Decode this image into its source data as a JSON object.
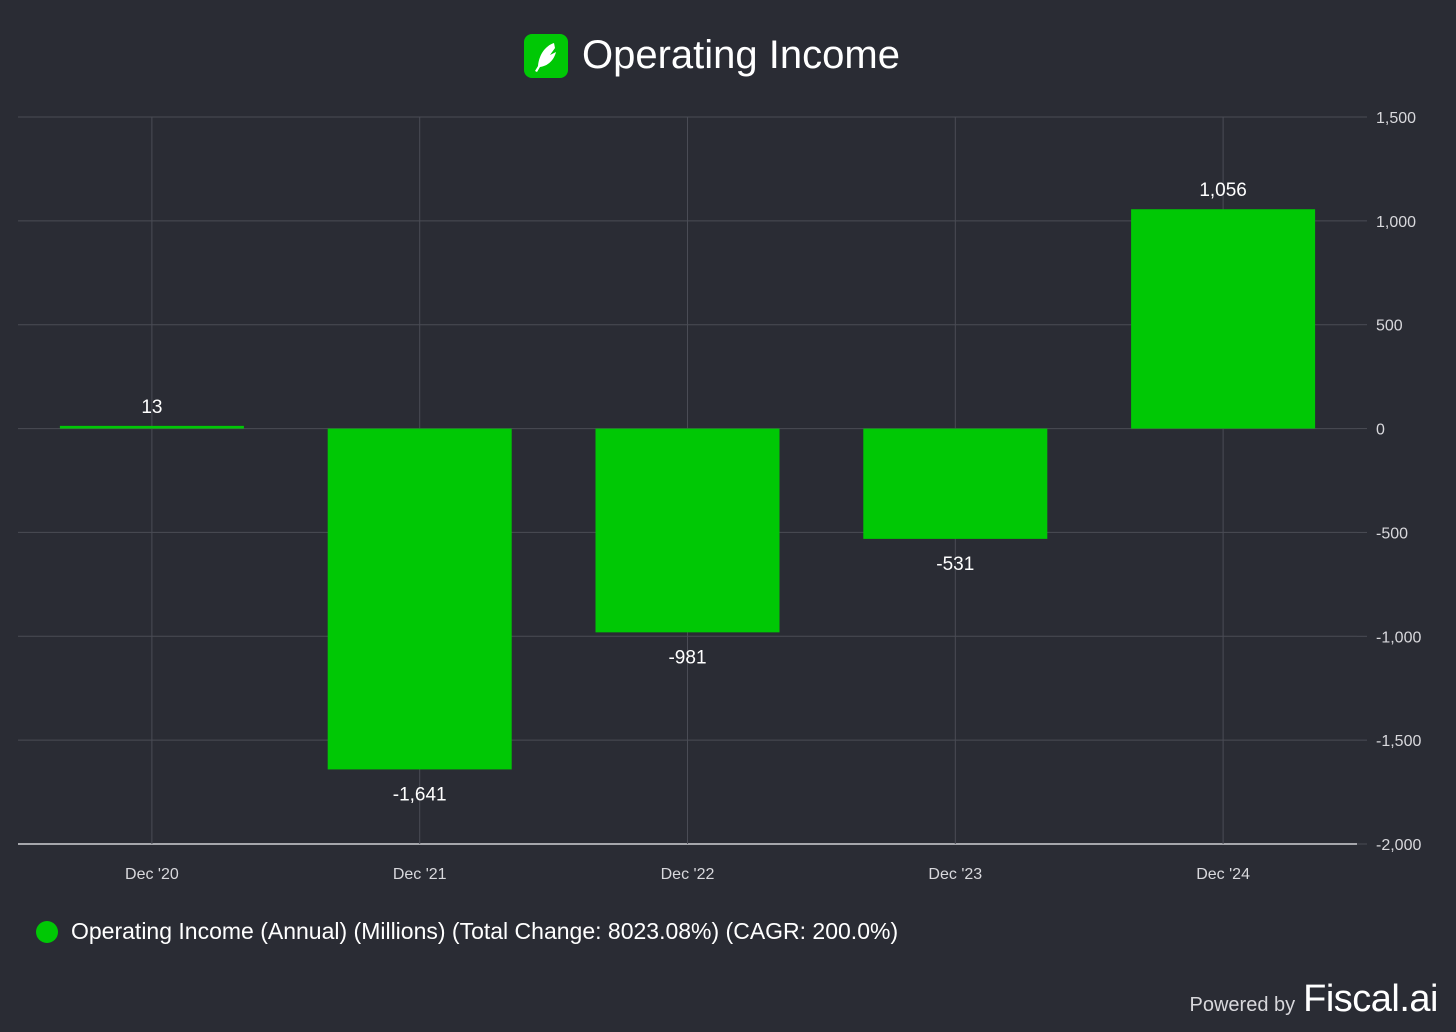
{
  "colors": {
    "background": "#2a2c34",
    "bar": "#00c805",
    "grid": "#4a4c55",
    "axis_text": "#d8d8dc",
    "text": "#ffffff"
  },
  "logo": {
    "icon": "robinhood-feather-icon"
  },
  "legend": {
    "text": "Operating Income (Annual) (Millions) (Total Change: 8023.08%) (CAGR: 200.0%)"
  },
  "footer": {
    "powered_by": "Powered by",
    "brand": "Fiscal.ai"
  },
  "chart_data": {
    "type": "bar",
    "title": "Operating Income",
    "categories": [
      "Dec '20",
      "Dec '21",
      "Dec '22",
      "Dec '23",
      "Dec '24"
    ],
    "series": [
      {
        "name": "Operating Income (Annual) (Millions)",
        "values": [
          13,
          -1641,
          -981,
          -531,
          1056
        ],
        "labels": [
          "13",
          "-1,641",
          "-981",
          "-531",
          "1,056"
        ]
      }
    ],
    "ylim": [
      -2000,
      1500
    ],
    "yticks": [
      1500,
      1000,
      500,
      0,
      -500,
      -1000,
      -1500,
      -2000
    ],
    "ytick_labels": [
      "1,500",
      "1,000",
      "500",
      "0",
      "-500",
      "-1,000",
      "-1,500",
      "-2,000"
    ],
    "y_axis_position": "right",
    "grid": true,
    "legend_position": "bottom-left"
  }
}
